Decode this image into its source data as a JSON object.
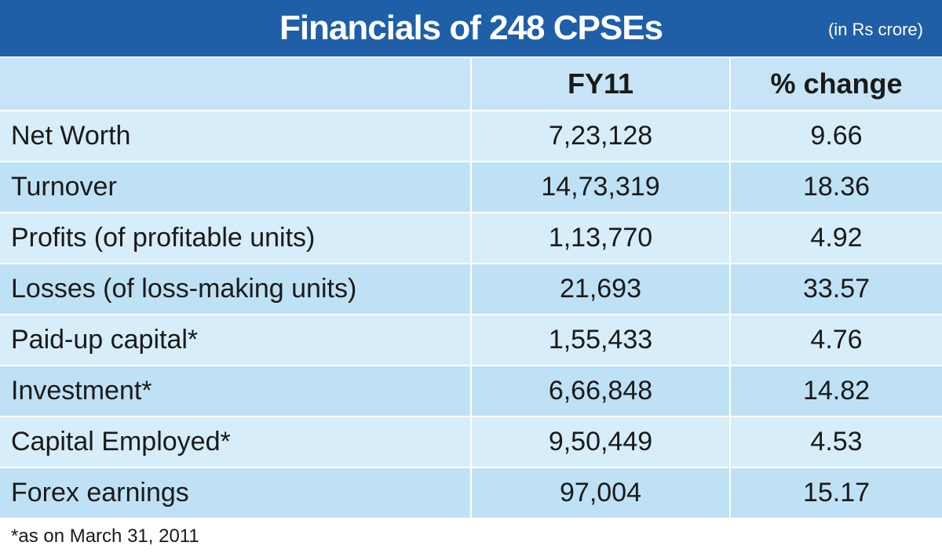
{
  "title": "Financials of 248 CPSEs",
  "unit_note": "(in Rs crore)",
  "footnote": "*as on March 31, 2011",
  "colors": {
    "title_bar": "#1f5fa8",
    "header_row": "#c6e4f6",
    "row_light": "#d7edf9",
    "row_dark": "#bfe1f5"
  },
  "chart_data": {
    "type": "table",
    "title": "Financials of 248 CPSEs",
    "unit": "(in Rs crore)",
    "columns": [
      "",
      "FY11",
      "% change"
    ],
    "rows": [
      [
        "Net Worth",
        "7,23,128",
        "9.66"
      ],
      [
        "Turnover",
        "14,73,319",
        "18.36"
      ],
      [
        "Profits (of profitable units)",
        "1,13,770",
        "4.92"
      ],
      [
        "Losses (of loss-making units)",
        "21,693",
        "33.57"
      ],
      [
        "Paid-up capital*",
        "1,55,433",
        "4.76"
      ],
      [
        "Investment*",
        "6,66,848",
        "14.82"
      ],
      [
        "Capital Employed*",
        "9,50,449",
        "4.53"
      ],
      [
        "Forex earnings",
        "97,004",
        "15.17"
      ]
    ]
  }
}
